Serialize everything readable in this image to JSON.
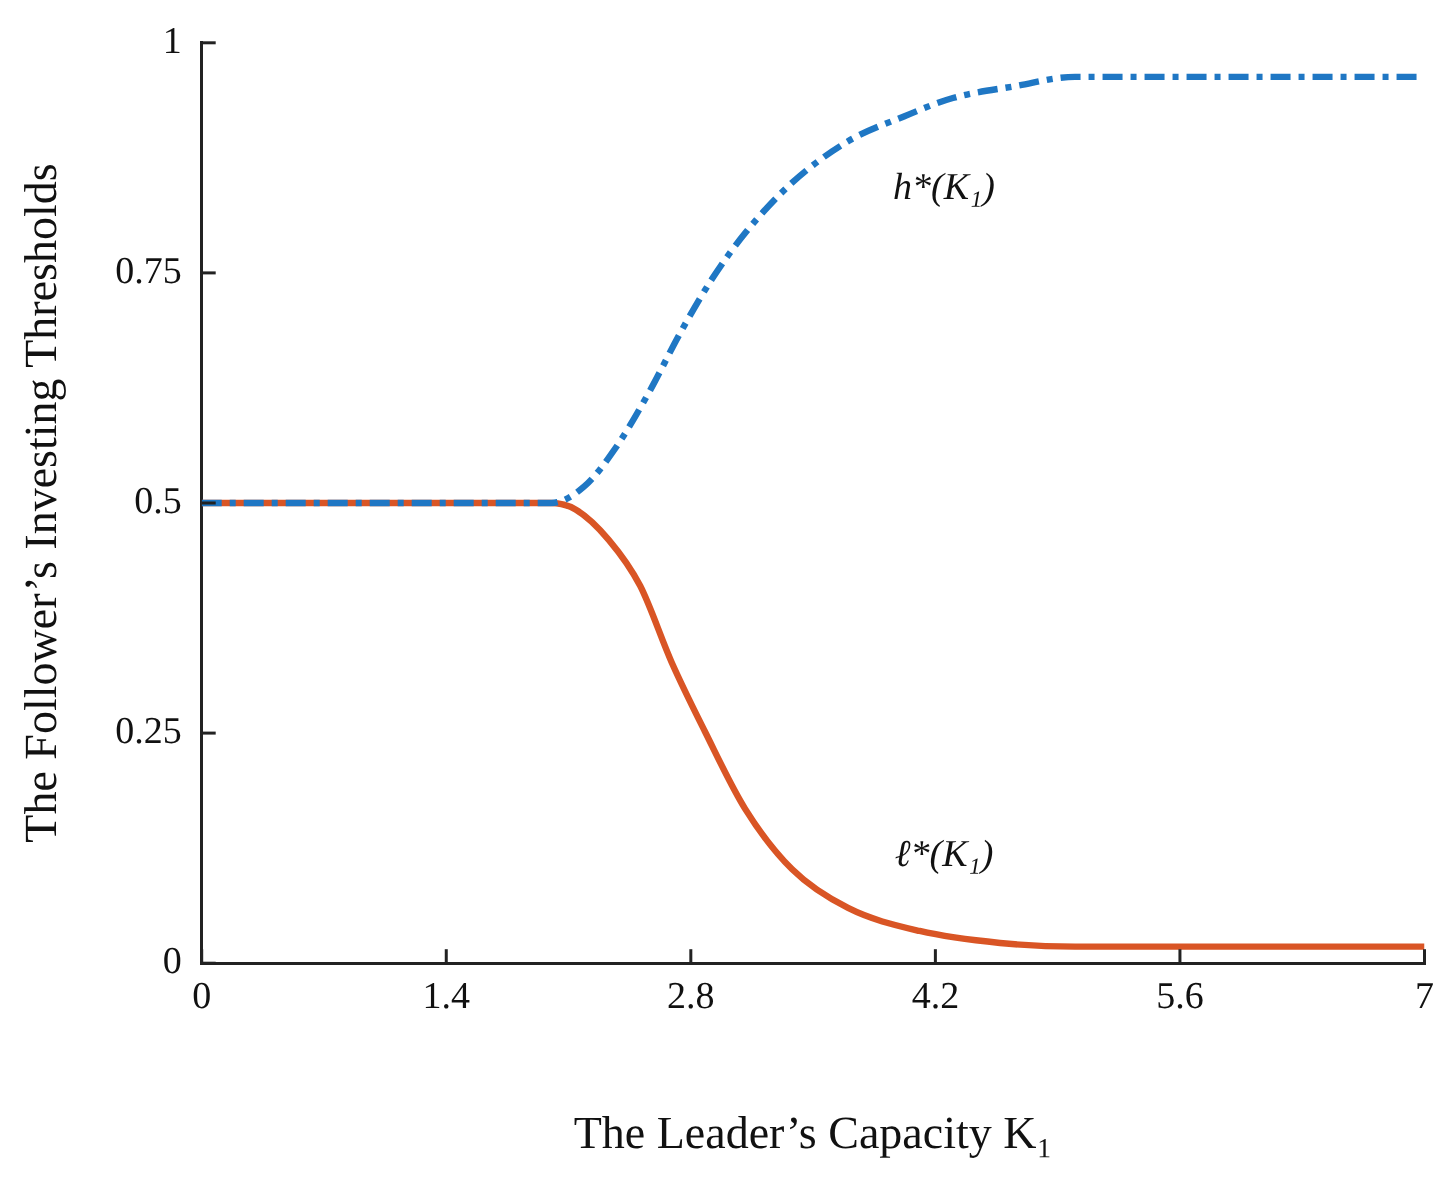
{
  "chart_data": {
    "type": "line",
    "xlabel": "The Leader’s Capacity K₁",
    "ylabel": "The Follower’s Investing Thresholds",
    "xlim": [
      0,
      7
    ],
    "xticks": [
      0,
      1.4,
      2.8,
      4.2,
      5.6,
      7
    ],
    "ylim": [
      0,
      1
    ],
    "yticks": [
      0,
      0.25,
      0.5,
      0.75,
      1
    ],
    "grid": false,
    "legend": false,
    "marker": "none",
    "series": [
      {
        "name": "h*(K₁)",
        "color": "#1f77c4",
        "line_style": "dashed",
        "x": [
          0,
          2.0,
          2.19,
          2.37,
          2.56,
          2.74,
          2.92,
          3.11,
          3.38,
          3.7,
          4.02,
          4.3,
          4.66,
          5.0,
          7
        ],
        "values": [
          0.5,
          0.5,
          0.518,
          0.56,
          0.62,
          0.685,
          0.743,
          0.793,
          0.848,
          0.893,
          0.92,
          0.94,
          0.953,
          0.963,
          0.963
        ]
      },
      {
        "name": "ℓ*(K₁)",
        "color": "#d95525",
        "line_style": "solid",
        "x": [
          0,
          2.0,
          2.14,
          2.33,
          2.51,
          2.69,
          2.88,
          3.11,
          3.38,
          3.7,
          4.11,
          4.57,
          5.0,
          7
        ],
        "values": [
          0.5,
          0.5,
          0.493,
          0.46,
          0.41,
          0.327,
          0.252,
          0.168,
          0.102,
          0.06,
          0.035,
          0.022,
          0.018,
          0.018
        ]
      }
    ]
  }
}
